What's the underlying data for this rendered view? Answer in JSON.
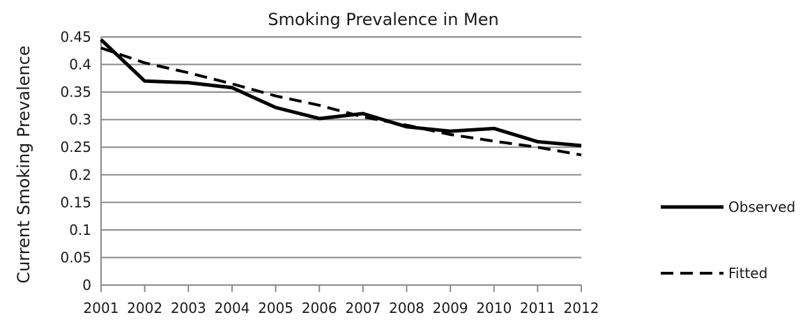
{
  "chart_data": {
    "type": "line",
    "title": "Smoking Prevalence in Men",
    "xlabel": "",
    "ylabel": "Current Smoking Prevalence",
    "categories": [
      "2001",
      "2002",
      "2003",
      "2004",
      "2005",
      "2006",
      "2007",
      "2008",
      "2009",
      "2010",
      "2011",
      "2012"
    ],
    "ylim": [
      0,
      0.45
    ],
    "yticks": [
      "0",
      "0.05",
      "0.1",
      "0.15",
      "0.2",
      "0.25",
      "0.3",
      "0.35",
      "0.4",
      "0.45"
    ],
    "grid": true,
    "legend_position": "right",
    "series": [
      {
        "name": "Observed",
        "style": "solid",
        "color": "#000000",
        "values": [
          0.445,
          0.37,
          0.367,
          0.358,
          0.322,
          0.302,
          0.311,
          0.287,
          0.279,
          0.284,
          0.26,
          0.253
        ]
      },
      {
        "name": "Fitted",
        "style": "dashed",
        "color": "#000000",
        "values": [
          0.43,
          0.403,
          0.385,
          0.365,
          0.343,
          0.326,
          0.305,
          0.29,
          0.273,
          0.261,
          0.25,
          0.236
        ]
      }
    ]
  }
}
